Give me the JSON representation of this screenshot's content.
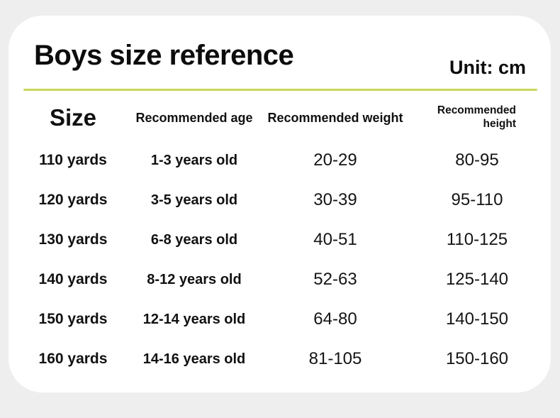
{
  "page": {
    "background": "#eeeeee",
    "card_background": "#ffffff",
    "accent_line_color": "#c9d85c"
  },
  "header": {
    "title": "Boys size reference",
    "unit_label": "Unit: cm"
  },
  "table": {
    "columns": {
      "size": "Size",
      "age": "Recommended age",
      "weight": "Recommended weight",
      "height": "Recommended height"
    },
    "rows": [
      {
        "size": "110 yards",
        "age": "1-3 years old",
        "weight": "20-29",
        "height": "80-95"
      },
      {
        "size": "120 yards",
        "age": "3-5 years old",
        "weight": "30-39",
        "height": "95-110"
      },
      {
        "size": "130 yards",
        "age": "6-8 years old",
        "weight": "40-51",
        "height": "110-125"
      },
      {
        "size": "140 yards",
        "age": "8-12 years old",
        "weight": "52-63",
        "height": "125-140"
      },
      {
        "size": "150 yards",
        "age": "12-14 years old",
        "weight": "64-80",
        "height": "140-150"
      },
      {
        "size": "160 yards",
        "age": "14-16 years old",
        "weight": "81-105",
        "height": "150-160"
      }
    ]
  }
}
